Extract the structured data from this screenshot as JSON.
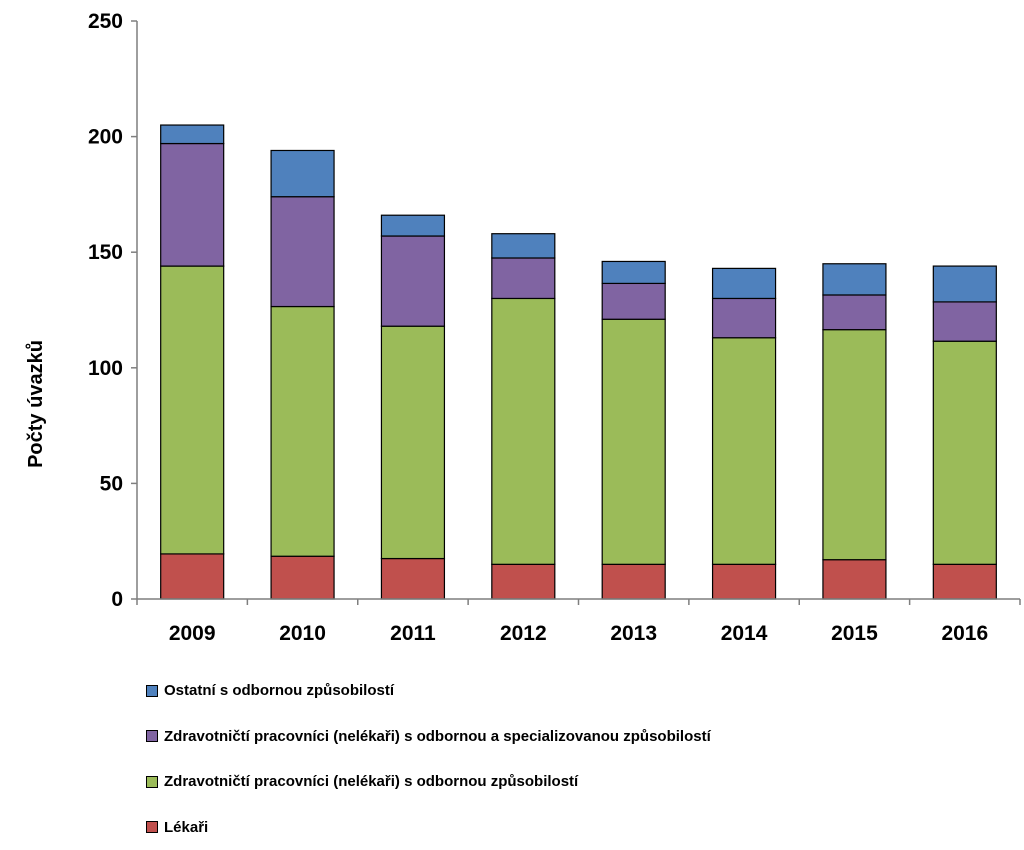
{
  "chart_data": {
    "type": "bar",
    "stacked": true,
    "title": "",
    "xlabel": "",
    "ylabel": "Počty úvazků",
    "ylim": [
      0,
      250
    ],
    "yticks": [
      0,
      50,
      100,
      150,
      200,
      250
    ],
    "grid": false,
    "legend_position": "bottom",
    "categories": [
      "2009",
      "2010",
      "2011",
      "2012",
      "2013",
      "2014",
      "2015",
      "2016"
    ],
    "series": [
      {
        "name": "Lékaři",
        "color": "#c0504d",
        "values": [
          19.5,
          18.5,
          17.5,
          15,
          15,
          15,
          17,
          15
        ]
      },
      {
        "name": "Zdravotničtí pracovníci (nelékaři) s odbornou způsobilostí",
        "color": "#9bbb59",
        "values": [
          124.5,
          108,
          100.5,
          115,
          106,
          98,
          99.5,
          96.5
        ]
      },
      {
        "name": "Zdravotničtí pracovníci (nelékaři) s odbornou a specializovanou způsobilostí",
        "color": "#8064a2",
        "values": [
          53,
          47.5,
          39,
          17.5,
          15.5,
          17,
          15,
          17
        ]
      },
      {
        "name": "Ostatní s odbornou způsobilostí",
        "color": "#4f81bd",
        "values": [
          8,
          20,
          9,
          10.5,
          9.5,
          13,
          13.5,
          15.5
        ]
      }
    ]
  }
}
